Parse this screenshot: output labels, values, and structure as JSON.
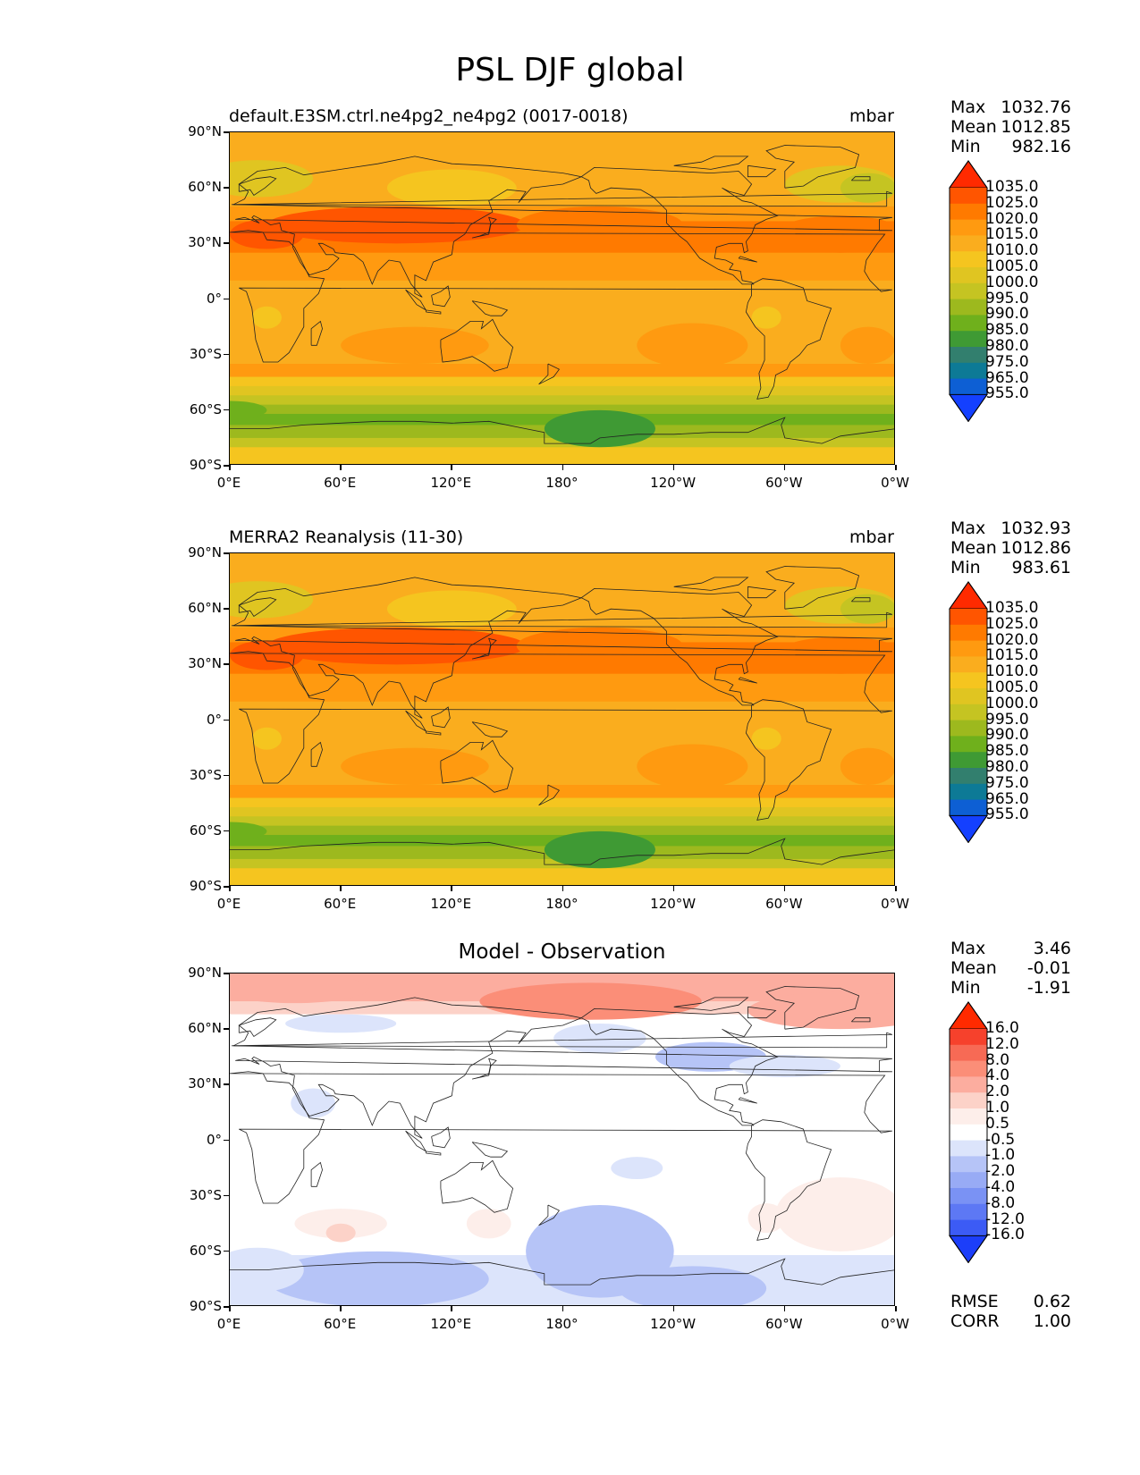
{
  "figure": {
    "title": "PSL DJF global"
  },
  "axes": {
    "y_ticks": [
      "90°N",
      "60°N",
      "30°N",
      "0°",
      "30°S",
      "60°S",
      "90°S"
    ],
    "x_ticks": [
      "0°E",
      "60°E",
      "120°E",
      "180°",
      "120°W",
      "60°W",
      "0°W"
    ]
  },
  "panels": [
    {
      "id": "test",
      "title_left": "default.E3SM.ctrl.ne4pg2_ne4pg2 (0017-0018)",
      "title_right": "mbar",
      "title_center": "",
      "stats": [
        {
          "label": "Max",
          "value": "1032.76"
        },
        {
          "label": "Mean",
          "value": "1012.85"
        },
        {
          "label": "Min",
          "value": "982.16"
        }
      ],
      "colorbar_labels": [
        "1035.0",
        "1025.0",
        "1020.0",
        "1015.0",
        "1010.0",
        "1005.0",
        "1000.0",
        "995.0",
        "990.0",
        "985.0",
        "980.0",
        "975.0",
        "965.0",
        "955.0"
      ]
    },
    {
      "id": "ref",
      "title_left": "MERRA2 Reanalysis (11-30)",
      "title_right": "mbar",
      "title_center": "",
      "stats": [
        {
          "label": "Max",
          "value": "1032.93"
        },
        {
          "label": "Mean",
          "value": "1012.86"
        },
        {
          "label": "Min",
          "value": "983.61"
        }
      ],
      "colorbar_labels": [
        "1035.0",
        "1025.0",
        "1020.0",
        "1015.0",
        "1010.0",
        "1005.0",
        "1000.0",
        "995.0",
        "990.0",
        "985.0",
        "980.0",
        "975.0",
        "965.0",
        "955.0"
      ]
    },
    {
      "id": "diff",
      "title_left": "",
      "title_right": "",
      "title_center": "Model - Observation",
      "stats": [
        {
          "label": "Max",
          "value": "3.46"
        },
        {
          "label": "Mean",
          "value": "-0.01"
        },
        {
          "label": "Min",
          "value": "-1.91"
        }
      ],
      "colorbar_labels": [
        "16.0",
        "12.0",
        "8.0",
        "4.0",
        "2.0",
        "1.0",
        "0.5",
        "-0.5",
        "-1.0",
        "-2.0",
        "-4.0",
        "-8.0",
        "-12.0",
        "-16.0"
      ],
      "extra": [
        {
          "label": "RMSE",
          "value": "0.62"
        },
        {
          "label": "CORR",
          "value": "1.00"
        }
      ]
    }
  ],
  "colors": {
    "psl_scale": [
      "#ff2a00",
      "#ff5500",
      "#ff7a00",
      "#ff9a10",
      "#faad1e",
      "#f5c51f",
      "#e0c521",
      "#c5c422",
      "#9db91e",
      "#6fb01c",
      "#3f9a34",
      "#327f6e",
      "#0d7a96",
      "#0d5fd4",
      "#1440ff"
    ],
    "diff_scale": [
      "#ff2a00",
      "#f6412c",
      "#f76a55",
      "#fb8e78",
      "#fcad9f",
      "#fcd2c8",
      "#fdeeea",
      "#ffffff",
      "#dce4fb",
      "#b6c4f7",
      "#98abf5",
      "#7a92f4",
      "#5d78f4",
      "#3c5bf5",
      "#1c3ef9"
    ]
  }
}
